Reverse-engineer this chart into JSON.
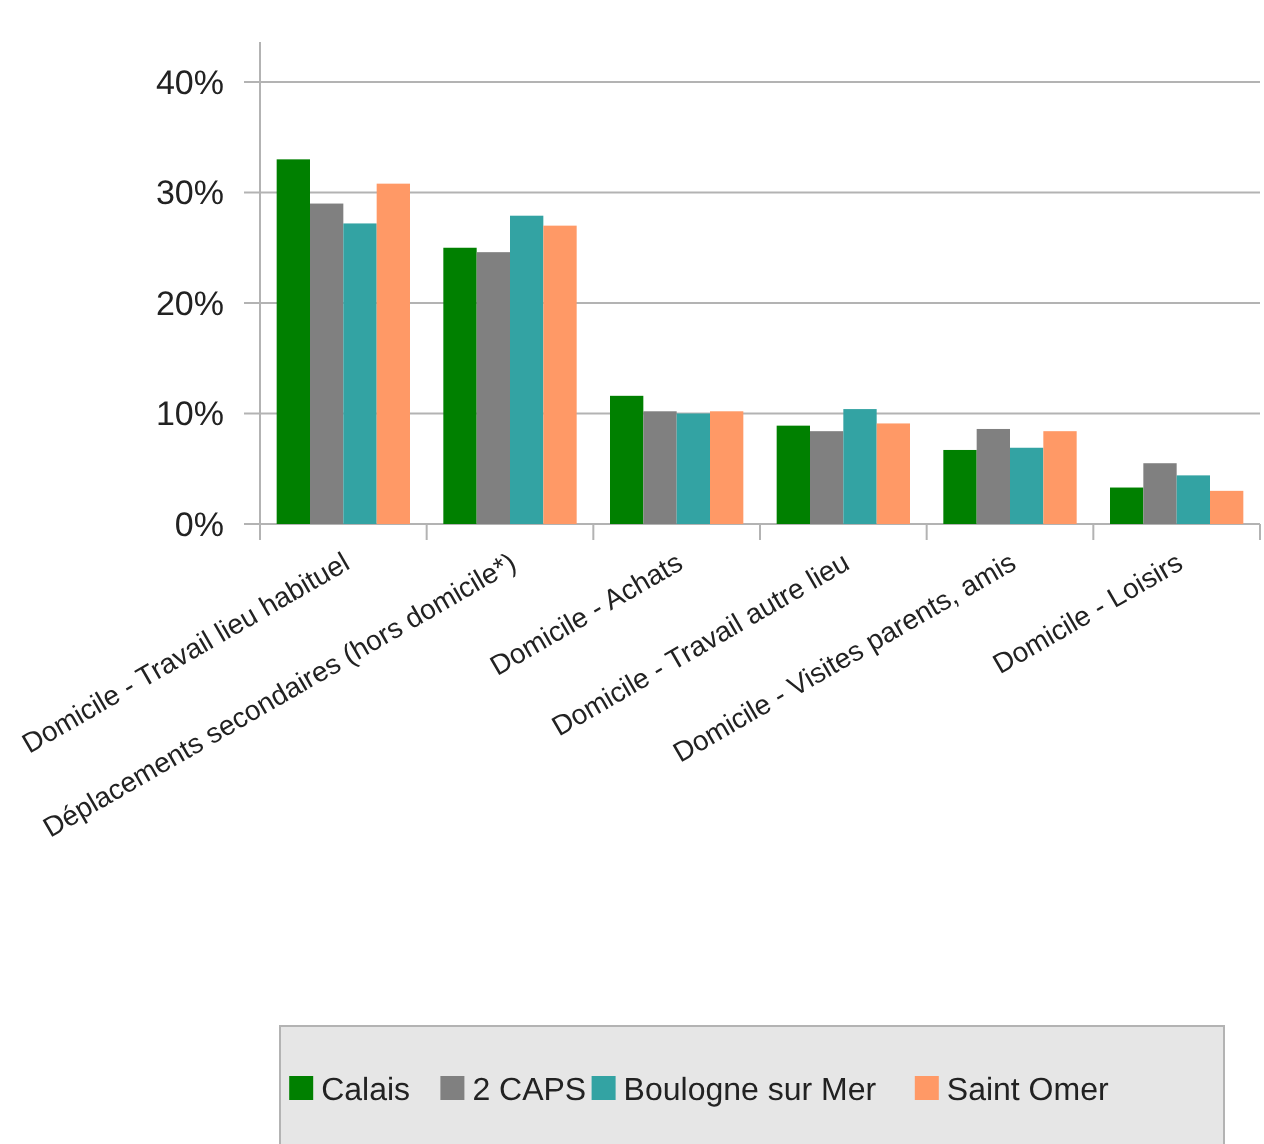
{
  "chart_data": {
    "type": "bar",
    "categories": [
      "Domicile - Travail lieu habituel",
      "Déplacements secondaires (hors domicile*)",
      "Domicile - Achats",
      "Domicile - Travail autre lieu",
      "Domicile - Visites parents, amis",
      "Domicile - Loisirs"
    ],
    "series": [
      {
        "name": "Calais",
        "color": "#008000",
        "values": [
          33.0,
          25.0,
          11.6,
          8.9,
          6.7,
          3.3
        ]
      },
      {
        "name": "2 CAPS",
        "color": "#808080",
        "values": [
          29.0,
          24.6,
          10.2,
          8.4,
          8.6,
          5.5
        ]
      },
      {
        "name": "Boulogne sur Mer",
        "color": "#33a3a3",
        "values": [
          27.2,
          27.9,
          10.0,
          10.4,
          6.9,
          4.4
        ]
      },
      {
        "name": "Saint Omer",
        "color": "#ff9966",
        "values": [
          30.8,
          27.0,
          10.2,
          9.1,
          8.4,
          3.0
        ]
      }
    ],
    "ylim": [
      0,
      40
    ],
    "yticks": [
      {
        "value": 0,
        "label": "0%"
      },
      {
        "value": 10,
        "label": "10%"
      },
      {
        "value": 20,
        "label": "20%"
      },
      {
        "value": 30,
        "label": "30%"
      },
      {
        "value": 40,
        "label": "40%"
      }
    ],
    "grid": "y",
    "legend": "bottom"
  }
}
